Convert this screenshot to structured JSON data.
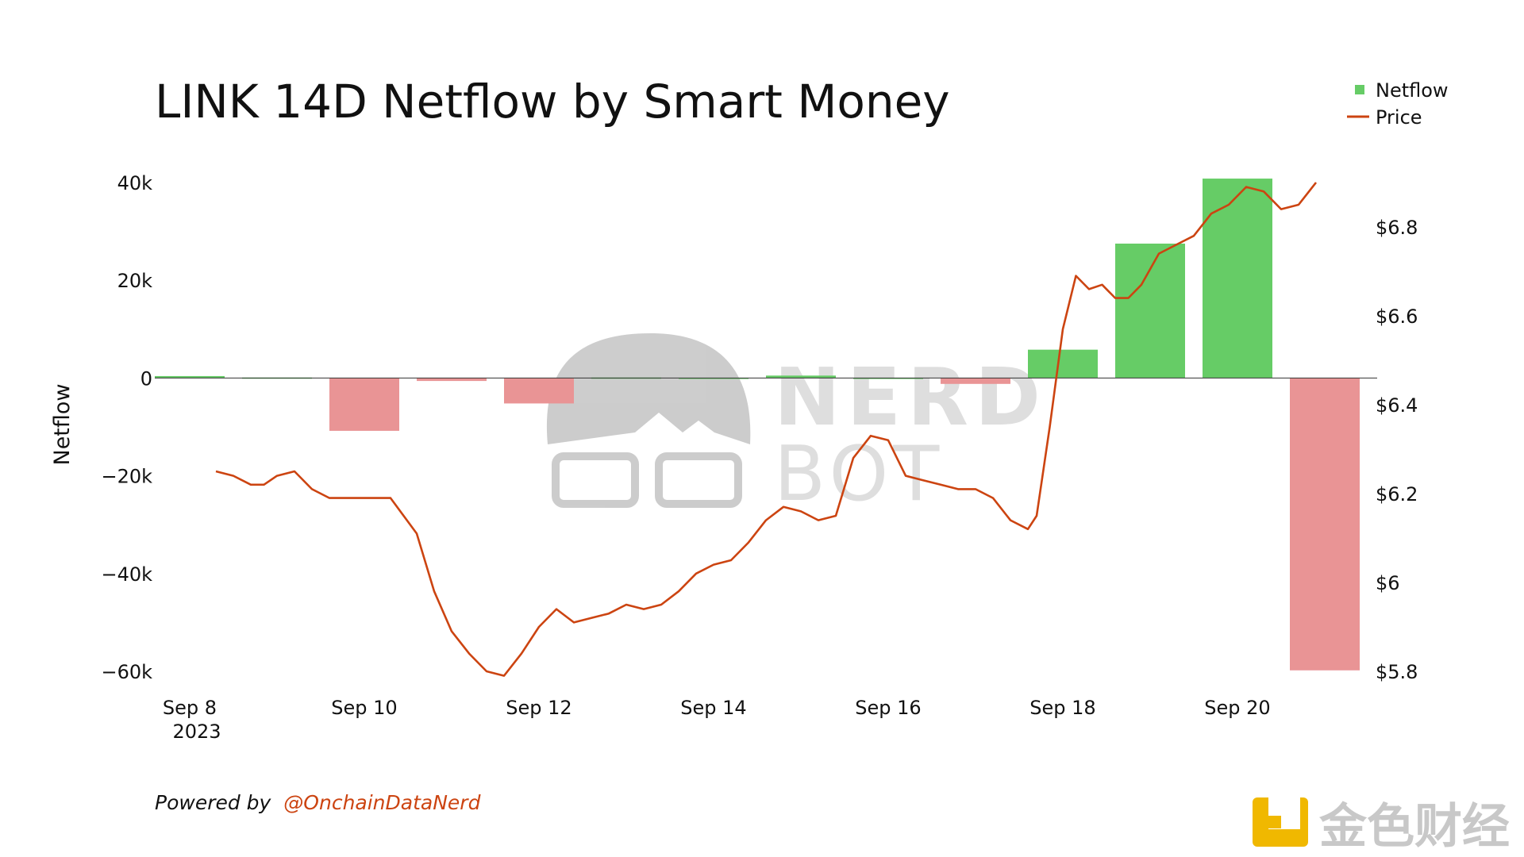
{
  "chart_data": {
    "type": "bar",
    "title": "LINK 14D Netflow by Smart Money",
    "ylabel": "Netflow",
    "y2label": "",
    "ylim": [
      -60000,
      40000
    ],
    "y2lim": [
      5.8,
      6.9
    ],
    "y_ticks": [
      "40k",
      "20k",
      "0",
      "−20k",
      "−40k",
      "−60k"
    ],
    "y2_ticks": [
      "$6.8",
      "$6.6",
      "$6.4",
      "$6.2",
      "$6",
      "$5.8"
    ],
    "x_ticks": [
      "Sep 8",
      "Sep 10",
      "Sep 12",
      "Sep 14",
      "Sep 16",
      "Sep 18",
      "Sep 20"
    ],
    "x_tick_year": "2023",
    "legend": {
      "position": "top-right",
      "items": [
        "Netflow",
        "Price"
      ]
    },
    "grid": false,
    "colors": {
      "positive": "#66cc66",
      "negative": "#e99495",
      "price": "#cc4411"
    },
    "series": [
      {
        "name": "Netflow",
        "type": "bar",
        "x": [
          8,
          9,
          10,
          11,
          12,
          13,
          14,
          15,
          16,
          17,
          18,
          19,
          20,
          21
        ],
        "values": [
          400,
          100,
          -10800,
          -600,
          -5200,
          100,
          50,
          500,
          50,
          -1200,
          5800,
          27500,
          40800,
          -59800
        ]
      },
      {
        "name": "Price",
        "type": "line",
        "axis": "right",
        "x": [
          8.3,
          8.5,
          8.7,
          8.85,
          9,
          9.2,
          9.4,
          9.6,
          9.8,
          10,
          10.3,
          10.6,
          10.8,
          11,
          11.2,
          11.4,
          11.6,
          11.8,
          12,
          12.2,
          12.4,
          12.6,
          12.8,
          13,
          13.2,
          13.4,
          13.6,
          13.8,
          14,
          14.2,
          14.4,
          14.6,
          14.8,
          15,
          15.2,
          15.4,
          15.6,
          15.8,
          16,
          16.2,
          16.4,
          16.6,
          16.8,
          17,
          17.2,
          17.4,
          17.6,
          17.7,
          17.85,
          18,
          18.15,
          18.3,
          18.45,
          18.6,
          18.75,
          18.9,
          19.1,
          19.3,
          19.5,
          19.7,
          19.9,
          20.1,
          20.3,
          20.5,
          20.7,
          20.9
        ],
        "values": [
          6.25,
          6.24,
          6.22,
          6.22,
          6.24,
          6.25,
          6.21,
          6.19,
          6.19,
          6.19,
          6.19,
          6.11,
          5.98,
          5.89,
          5.84,
          5.8,
          5.79,
          5.84,
          5.9,
          5.94,
          5.91,
          5.92,
          5.93,
          5.95,
          5.94,
          5.95,
          5.98,
          6.02,
          6.04,
          6.05,
          6.09,
          6.14,
          6.17,
          6.16,
          6.14,
          6.15,
          6.28,
          6.33,
          6.32,
          6.24,
          6.23,
          6.22,
          6.21,
          6.21,
          6.19,
          6.14,
          6.12,
          6.15,
          6.35,
          6.57,
          6.69,
          6.66,
          6.67,
          6.64,
          6.64,
          6.67,
          6.74,
          6.76,
          6.78,
          6.83,
          6.85,
          6.89,
          6.88,
          6.84,
          6.85,
          6.9
        ]
      }
    ]
  },
  "footer": {
    "prefix": "Powered by",
    "handle": "@OnchainDataNerd"
  },
  "watermark": {
    "line1": "NERD",
    "line2": "BOT",
    "corner_text": "金色财经"
  }
}
